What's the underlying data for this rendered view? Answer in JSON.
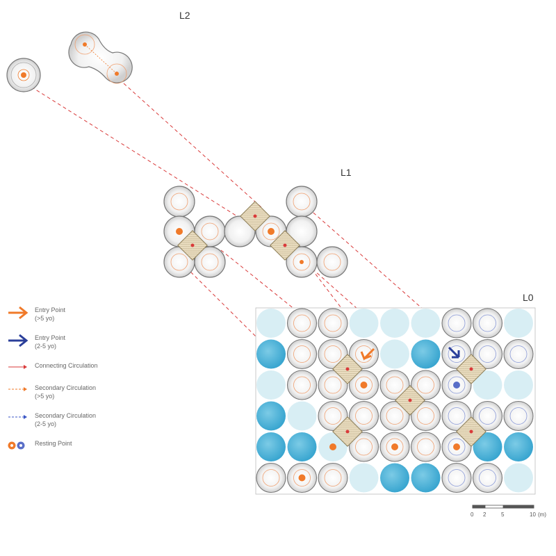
{
  "levels": {
    "l2": "L2",
    "l1": "L1",
    "l0": "L0"
  },
  "legend": [
    {
      "line1": "Entry Point",
      "line2": "(>5 yo)",
      "icon": "orange-arrow",
      "color": "#f07a2a"
    },
    {
      "line1": "Entry Point",
      "line2": "(2-5 yo)",
      "icon": "blue-arrow",
      "color": "#2b3f9a"
    },
    {
      "line1": "Connecting Circulation",
      "line2": "",
      "icon": "red-arrow-line",
      "color": "#d93a3a"
    },
    {
      "line1": "Secondary Circulation",
      "line2": "(>5 yo)",
      "icon": "orange-dashed-arrow",
      "color": "#f07a2a"
    },
    {
      "line1": "Secondary Circulation",
      "line2": "(2-5 yo)",
      "icon": "blue-dashed-arrow",
      "color": "#3a55c4"
    },
    {
      "line1": "Resting Point",
      "line2": "",
      "icon": "resting-point-dots",
      "color": "#f07a2a"
    }
  ],
  "scale_bar": {
    "ticks": [
      "0",
      "2",
      "5",
      "10"
    ],
    "unit": "(m)"
  },
  "colors": {
    "orange": "#f07a2a",
    "blue": "#2b3f9a",
    "red": "#d93a3a",
    "water": "#5ab8dc",
    "pale": "#d8eef4"
  }
}
